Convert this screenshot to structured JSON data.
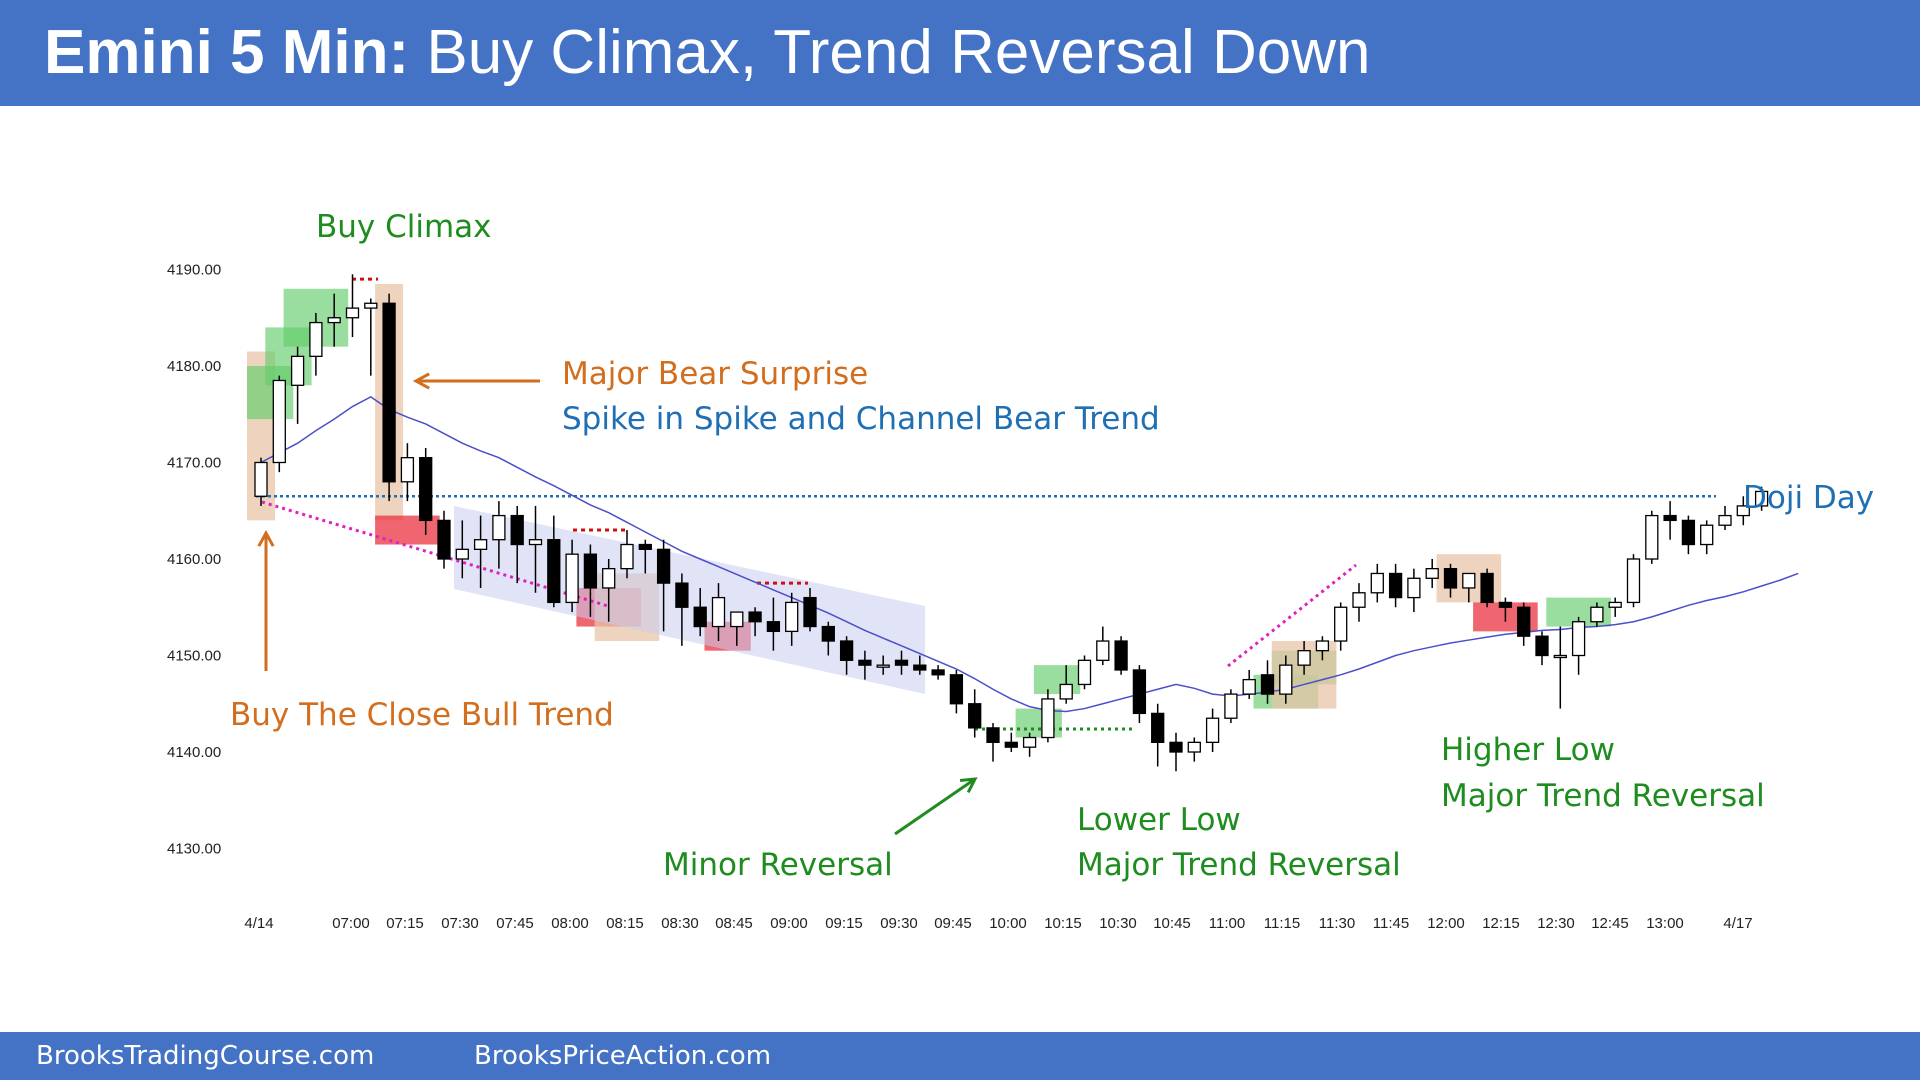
{
  "header": {
    "title_bold": "Emini 5 Min:",
    "title_rest": " Buy Climax, Trend Reversal Down"
  },
  "footer": {
    "left_link": "BrooksTradingCourse.com",
    "right_link": "BrooksPriceAction.com"
  },
  "colors": {
    "header_bg": "#4472c4",
    "bull_body": "#ffffff",
    "bear_body": "#000000",
    "ema": "#4b4fc9",
    "green_highlight": "#62cc6a",
    "red_highlight": "#ea3340",
    "tan_highlight": "#e8c4a8",
    "channel": "#c8cdf0",
    "magenta_line": "#e020c0",
    "doji_line": "#1f6fb5",
    "annotation_green": "#1e8c1e",
    "annotation_orange": "#d26e1e",
    "annotation_blue": "#1f6fb5"
  },
  "chart_data": {
    "type": "candlestick",
    "title": "Emini 5 Min: Buy Climax, Trend Reversal Down",
    "y_ticks": [
      "4130.00",
      "4140.00",
      "4150.00",
      "4160.00",
      "4170.00",
      "4180.00",
      "4190.00"
    ],
    "ylim": [
      4126,
      4193
    ],
    "x_ticks": [
      "4/14",
      "07:00",
      "07:15",
      "07:30",
      "07:45",
      "08:00",
      "08:15",
      "08:30",
      "08:45",
      "09:00",
      "09:15",
      "09:30",
      "09:45",
      "10:00",
      "10:15",
      "10:30",
      "10:45",
      "11:00",
      "11:15",
      "11:30",
      "11:45",
      "12:00",
      "12:15",
      "12:30",
      "12:45",
      "13:00",
      "4/17"
    ],
    "candles": [
      {
        "o": 4166.5,
        "h": 4170.5,
        "l": 4165.5,
        "c": 4170.0
      },
      {
        "o": 4170.0,
        "h": 4179.0,
        "l": 4169.0,
        "c": 4178.5
      },
      {
        "o": 4178.0,
        "h": 4182.0,
        "l": 4174.0,
        "c": 4181.0
      },
      {
        "o": 4181.0,
        "h": 4185.5,
        "l": 4179.0,
        "c": 4184.5
      },
      {
        "o": 4184.5,
        "h": 4187.5,
        "l": 4182.0,
        "c": 4185.0
      },
      {
        "o": 4185.0,
        "h": 4189.5,
        "l": 4183.0,
        "c": 4186.0
      },
      {
        "o": 4186.0,
        "h": 4187.0,
        "l": 4179.0,
        "c": 4186.5
      },
      {
        "o": 4186.5,
        "h": 4187.5,
        "l": 4166.0,
        "c": 4168.0
      },
      {
        "o": 4168.0,
        "h": 4172.0,
        "l": 4166.0,
        "c": 4170.5
      },
      {
        "o": 4170.5,
        "h": 4171.5,
        "l": 4162.5,
        "c": 4164.0
      },
      {
        "o": 4164.0,
        "h": 4165.0,
        "l": 4159.0,
        "c": 4160.0
      },
      {
        "o": 4160.0,
        "h": 4164.0,
        "l": 4158.0,
        "c": 4161.0
      },
      {
        "o": 4161.0,
        "h": 4164.5,
        "l": 4157.0,
        "c": 4162.0
      },
      {
        "o": 4162.0,
        "h": 4166.0,
        "l": 4159.0,
        "c": 4164.5
      },
      {
        "o": 4164.5,
        "h": 4165.5,
        "l": 4157.5,
        "c": 4161.5
      },
      {
        "o": 4161.5,
        "h": 4165.5,
        "l": 4156.5,
        "c": 4162.0
      },
      {
        "o": 4162.0,
        "h": 4164.5,
        "l": 4155.0,
        "c": 4155.5
      },
      {
        "o": 4155.5,
        "h": 4162.0,
        "l": 4154.5,
        "c": 4160.5
      },
      {
        "o": 4160.5,
        "h": 4161.5,
        "l": 4154.0,
        "c": 4157.0
      },
      {
        "o": 4157.0,
        "h": 4160.0,
        "l": 4153.5,
        "c": 4159.0
      },
      {
        "o": 4159.0,
        "h": 4163.0,
        "l": 4158.0,
        "c": 4161.5
      },
      {
        "o": 4161.5,
        "h": 4162.0,
        "l": 4158.5,
        "c": 4161.0
      },
      {
        "o": 4161.0,
        "h": 4162.0,
        "l": 4152.5,
        "c": 4157.5
      },
      {
        "o": 4157.5,
        "h": 4158.5,
        "l": 4151.0,
        "c": 4155.0
      },
      {
        "o": 4155.0,
        "h": 4157.0,
        "l": 4152.0,
        "c": 4153.0
      },
      {
        "o": 4153.0,
        "h": 4157.5,
        "l": 4151.5,
        "c": 4156.0
      },
      {
        "o": 4153.0,
        "h": 4154.5,
        "l": 4151.0,
        "c": 4154.5
      },
      {
        "o": 4154.5,
        "h": 4155.0,
        "l": 4152.0,
        "c": 4153.5
      },
      {
        "o": 4153.5,
        "h": 4156.0,
        "l": 4150.5,
        "c": 4152.5
      },
      {
        "o": 4152.5,
        "h": 4156.5,
        "l": 4151.0,
        "c": 4155.5
      },
      {
        "o": 4156.0,
        "h": 4157.0,
        "l": 4152.5,
        "c": 4153.0
      },
      {
        "o": 4153.0,
        "h": 4153.5,
        "l": 4150.0,
        "c": 4151.5
      },
      {
        "o": 4151.5,
        "h": 4152.0,
        "l": 4148.0,
        "c": 4149.5
      },
      {
        "o": 4149.5,
        "h": 4150.5,
        "l": 4147.5,
        "c": 4149.0
      },
      {
        "o": 4149.0,
        "h": 4150.0,
        "l": 4148.0,
        "c": 4149.0
      },
      {
        "o": 4149.5,
        "h": 4150.5,
        "l": 4148.0,
        "c": 4149.0
      },
      {
        "o": 4149.0,
        "h": 4150.0,
        "l": 4148.0,
        "c": 4148.5
      },
      {
        "o": 4148.5,
        "h": 4149.0,
        "l": 4147.5,
        "c": 4148.0
      },
      {
        "o": 4148.0,
        "h": 4148.5,
        "l": 4144.0,
        "c": 4145.0
      },
      {
        "o": 4145.0,
        "h": 4146.5,
        "l": 4141.5,
        "c": 4142.5
      },
      {
        "o": 4142.5,
        "h": 4143.0,
        "l": 4139.0,
        "c": 4141.0
      },
      {
        "o": 4141.0,
        "h": 4142.0,
        "l": 4140.0,
        "c": 4140.5
      },
      {
        "o": 4140.5,
        "h": 4142.0,
        "l": 4139.5,
        "c": 4141.5
      },
      {
        "o": 4141.5,
        "h": 4146.5,
        "l": 4141.0,
        "c": 4145.5
      },
      {
        "o": 4145.5,
        "h": 4149.0,
        "l": 4145.0,
        "c": 4147.0
      },
      {
        "o": 4147.0,
        "h": 4150.0,
        "l": 4146.5,
        "c": 4149.5
      },
      {
        "o": 4149.5,
        "h": 4153.0,
        "l": 4149.0,
        "c": 4151.5
      },
      {
        "o": 4151.5,
        "h": 4152.0,
        "l": 4148.0,
        "c": 4148.5
      },
      {
        "o": 4148.5,
        "h": 4149.0,
        "l": 4143.0,
        "c": 4144.0
      },
      {
        "o": 4144.0,
        "h": 4145.0,
        "l": 4138.5,
        "c": 4141.0
      },
      {
        "o": 4141.0,
        "h": 4142.0,
        "l": 4138.0,
        "c": 4140.0
      },
      {
        "o": 4140.0,
        "h": 4141.5,
        "l": 4139.0,
        "c": 4141.0
      },
      {
        "o": 4141.0,
        "h": 4144.5,
        "l": 4140.0,
        "c": 4143.5
      },
      {
        "o": 4143.5,
        "h": 4146.5,
        "l": 4143.0,
        "c": 4146.0
      },
      {
        "o": 4146.0,
        "h": 4148.5,
        "l": 4145.5,
        "c": 4147.5
      },
      {
        "o": 4148.0,
        "h": 4149.5,
        "l": 4145.0,
        "c": 4146.0
      },
      {
        "o": 4146.0,
        "h": 4150.0,
        "l": 4145.0,
        "c": 4149.0
      },
      {
        "o": 4149.0,
        "h": 4151.5,
        "l": 4148.0,
        "c": 4150.5
      },
      {
        "o": 4150.5,
        "h": 4152.0,
        "l": 4149.5,
        "c": 4151.5
      },
      {
        "o": 4151.5,
        "h": 4155.5,
        "l": 4150.5,
        "c": 4155.0
      },
      {
        "o": 4155.0,
        "h": 4157.5,
        "l": 4153.5,
        "c": 4156.5
      },
      {
        "o": 4156.5,
        "h": 4159.5,
        "l": 4155.5,
        "c": 4158.5
      },
      {
        "o": 4158.5,
        "h": 4159.5,
        "l": 4155.0,
        "c": 4156.0
      },
      {
        "o": 4156.0,
        "h": 4159.0,
        "l": 4154.5,
        "c": 4158.0
      },
      {
        "o": 4158.0,
        "h": 4160.0,
        "l": 4157.0,
        "c": 4159.0
      },
      {
        "o": 4159.0,
        "h": 4159.5,
        "l": 4156.0,
        "c": 4157.0
      },
      {
        "o": 4157.0,
        "h": 4158.5,
        "l": 4155.5,
        "c": 4158.5
      },
      {
        "o": 4158.5,
        "h": 4159.0,
        "l": 4155.0,
        "c": 4155.5
      },
      {
        "o": 4155.5,
        "h": 4156.0,
        "l": 4153.5,
        "c": 4155.0
      },
      {
        "o": 4155.0,
        "h": 4155.5,
        "l": 4151.0,
        "c": 4152.0
      },
      {
        "o": 4152.0,
        "h": 4152.5,
        "l": 4149.0,
        "c": 4150.0
      },
      {
        "o": 4150.0,
        "h": 4153.0,
        "l": 4144.5,
        "c": 4150.0
      },
      {
        "o": 4150.0,
        "h": 4154.0,
        "l": 4148.0,
        "c": 4153.5
      },
      {
        "o": 4153.5,
        "h": 4155.5,
        "l": 4153.0,
        "c": 4155.0
      },
      {
        "o": 4155.0,
        "h": 4156.0,
        "l": 4154.0,
        "c": 4155.5
      },
      {
        "o": 4155.5,
        "h": 4160.5,
        "l": 4155.0,
        "c": 4160.0
      },
      {
        "o": 4160.0,
        "h": 4165.0,
        "l": 4159.5,
        "c": 4164.5
      },
      {
        "o": 4164.5,
        "h": 4166.0,
        "l": 4162.0,
        "c": 4164.0
      },
      {
        "o": 4164.0,
        "h": 4164.5,
        "l": 4160.5,
        "c": 4161.5
      },
      {
        "o": 4161.5,
        "h": 4164.0,
        "l": 4160.5,
        "c": 4163.5
      },
      {
        "o": 4163.5,
        "h": 4165.5,
        "l": 4163.0,
        "c": 4164.5
      },
      {
        "o": 4164.5,
        "h": 4166.5,
        "l": 4163.5,
        "c": 4165.5
      },
      {
        "o": 4165.5,
        "h": 4167.5,
        "l": 4165.0,
        "c": 4167.0
      }
    ],
    "ema_line": [
      4170.0,
      4171.0,
      4172.0,
      4173.3,
      4174.5,
      4175.8,
      4176.8,
      4175.5,
      4174.7,
      4174.0,
      4173.0,
      4172.0,
      4171.2,
      4170.5,
      4169.5,
      4168.5,
      4167.6,
      4166.6,
      4165.6,
      4164.8,
      4163.8,
      4162.8,
      4161.8,
      4160.8,
      4160.0,
      4159.2,
      4158.4,
      4157.6,
      4156.8,
      4156.0,
      4155.2,
      4154.4,
      4153.5,
      4152.6,
      4151.8,
      4151.0,
      4150.2,
      4149.4,
      4148.6,
      4147.6,
      4146.5,
      4145.5,
      4144.7,
      4144.3,
      4144.2,
      4144.5,
      4145.0,
      4145.5,
      4146.0,
      4146.5,
      4147.0,
      4146.6,
      4146.0,
      4145.8,
      4146.0,
      4146.2,
      4146.5,
      4147.0,
      4147.5,
      4148.0,
      4148.6,
      4149.3,
      4150.0,
      4150.5,
      4150.9,
      4151.3,
      4151.6,
      4151.9,
      4152.2,
      4152.4,
      4152.6,
      4152.7,
      4152.9,
      4153.0,
      4153.2,
      4153.5,
      4154.0,
      4154.6,
      4155.2,
      4155.7,
      4156.1,
      4156.6,
      4157.2,
      4157.8,
      4158.5
    ],
    "doji_level": 4166.5,
    "annotations": [
      {
        "text": "Buy Climax",
        "color": "green"
      },
      {
        "text": "Major Bear Surprise",
        "color": "orange"
      },
      {
        "text": "Spike in Spike and Channel Bear Trend",
        "color": "blue"
      },
      {
        "text": "Buy The Close Bull Trend",
        "color": "orange"
      },
      {
        "text": "Minor Reversal",
        "color": "green"
      },
      {
        "text": "Lower Low",
        "color": "green"
      },
      {
        "text": "Major Trend Reversal",
        "color": "green"
      },
      {
        "text": "Higher Low",
        "color": "green"
      },
      {
        "text": "Major Trend Reversal",
        "color": "green"
      },
      {
        "text": "Doji Day",
        "color": "blue"
      }
    ]
  }
}
